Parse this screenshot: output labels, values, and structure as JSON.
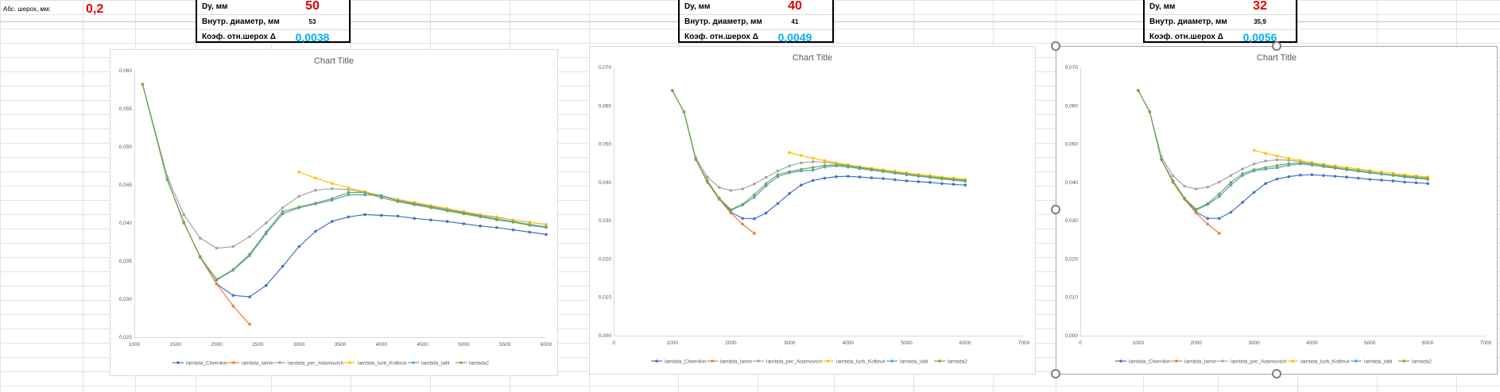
{
  "sheet": {
    "abs_roughness_label": "Абс. шерох, мм:",
    "abs_roughness_value": "0,2"
  },
  "info_boxes": [
    {
      "dy_label": "Dy, мм",
      "dy_value": "50",
      "inner_label": "Внутр. диаметр, мм",
      "inner_value": "53",
      "coef_label": "Коэф. отн.шерох Δ",
      "coef_value": "0,0038"
    },
    {
      "dy_label": "Dy, мм",
      "dy_value": "40",
      "inner_label": "Внутр. диаметр, мм",
      "inner_value": "41",
      "coef_label": "Коэф. отн.шерох Δ",
      "coef_value": "0,0049"
    },
    {
      "dy_label": "Dy, мм",
      "dy_value": "32",
      "inner_label": "Внутр. диаметр, мм",
      "inner_value": "35,9",
      "coef_label": "Коэф. отн.шерох Δ",
      "coef_value": "0,0056"
    }
  ],
  "colors": {
    "lambda_Chernikin": "#4472c4",
    "lambda_lamin": "#ed7d31",
    "lambda_per_Adamovich": "#a5a5a5",
    "lambda_turb_Kolbruk": "#ffc000",
    "lambda_tabl": "#5b9bd5",
    "lambda2": "#70ad47"
  },
  "chart_data": [
    {
      "type": "line",
      "title": "Chart Title",
      "xlim": [
        1000,
        6000
      ],
      "ylim": [
        0.025,
        0.06
      ],
      "xticks": [
        1000,
        1500,
        2000,
        2500,
        3000,
        3500,
        4000,
        4500,
        5000,
        5500,
        6000
      ],
      "xtick_labels": [
        "1000",
        "1500",
        "2000",
        "2500",
        "3000",
        "3500",
        "4000",
        "4500",
        "5000",
        "5500",
        "6000"
      ],
      "yticks": [
        0.025,
        0.03,
        0.035,
        0.04,
        0.045,
        0.05,
        0.055,
        0.06
      ],
      "ytick_labels": [
        "0,025",
        "0,030",
        "0,035",
        "0,040",
        "0,045",
        "0,050",
        "0,055",
        "0,060"
      ],
      "legend": "bottom",
      "grid": false,
      "series": [
        {
          "name": "lambda_Chernikin",
          "x": [
            1100,
            1400,
            1600,
            1800,
            2000,
            2200,
            2400,
            2600,
            2800,
            3000,
            3200,
            3400,
            3600,
            3800,
            4000,
            4200,
            4400,
            4600,
            4800,
            5000,
            5200,
            5400,
            5600,
            5800,
            6000
          ],
          "y": [
            0.0582,
            0.0457,
            0.0401,
            0.0355,
            0.032,
            0.0305,
            0.0303,
            0.0318,
            0.0343,
            0.0369,
            0.0389,
            0.0402,
            0.0408,
            0.0411,
            0.041,
            0.0409,
            0.0406,
            0.0404,
            0.0402,
            0.0399,
            0.0396,
            0.0394,
            0.0391,
            0.0388,
            0.0385
          ]
        },
        {
          "name": "lambda_lamin",
          "x": [
            1100,
            1400,
            1600,
            1800,
            2000,
            2200,
            2400
          ],
          "y": [
            0.0582,
            0.0457,
            0.04,
            0.0356,
            0.032,
            0.0291,
            0.0267
          ]
        },
        {
          "name": "lambda_per_Adamovich",
          "x": [
            1100,
            1400,
            1600,
            1800,
            2000,
            2200,
            2400,
            2600,
            2800,
            3000,
            3200,
            3400,
            3600,
            3800,
            4000,
            4200,
            4400,
            4600,
            4800,
            5000,
            5200,
            5400,
            5600,
            5800,
            6000
          ],
          "y": [
            0.0582,
            0.0461,
            0.0411,
            0.038,
            0.0367,
            0.0369,
            0.0382,
            0.04,
            0.042,
            0.0435,
            0.0443,
            0.0445,
            0.0444,
            0.044,
            0.0435,
            0.043,
            0.0426,
            0.0422,
            0.0418,
            0.0414,
            0.041,
            0.0407,
            0.0404,
            0.0401,
            0.0398
          ]
        },
        {
          "name": "lambda_turb_Kolbruk",
          "x": [
            3000,
            3200,
            3400,
            3600,
            3800,
            4000,
            4200,
            4400,
            4600,
            4800,
            5000,
            5200,
            5400,
            5600,
            5800,
            6000
          ],
          "y": [
            0.0467,
            0.0459,
            0.0452,
            0.0446,
            0.0441,
            0.0436,
            0.0431,
            0.0427,
            0.0423,
            0.0419,
            0.0415,
            0.0411,
            0.0408,
            0.0404,
            0.0401,
            0.0398
          ]
        },
        {
          "name": "lambda_tabl",
          "x": [
            1100,
            1400,
            1600,
            1800,
            2000,
            2200,
            2400,
            2600,
            2800,
            3000,
            3200,
            3400,
            3600,
            3800,
            4000,
            4200,
            4400,
            4600,
            4800,
            5000,
            5200,
            5400,
            5600,
            5800,
            6000
          ],
          "y": [
            0.0582,
            0.0457,
            0.0401,
            0.0355,
            0.0325,
            0.0338,
            0.0357,
            0.0386,
            0.0412,
            0.042,
            0.0425,
            0.043,
            0.0437,
            0.0437,
            0.0436,
            0.0429,
            0.0425,
            0.0421,
            0.0417,
            0.0413,
            0.0409,
            0.0405,
            0.0402,
            0.0398,
            0.0395
          ]
        },
        {
          "name": "lambda2",
          "x": [
            1100,
            1400,
            1600,
            1800,
            2000,
            2200,
            2400,
            2600,
            2800,
            3000,
            3200,
            3400,
            3600,
            3800,
            4000,
            4200,
            4400,
            4600,
            4800,
            5000,
            5200,
            5400,
            5600,
            5800,
            6000
          ],
          "y": [
            0.0582,
            0.0457,
            0.0401,
            0.0355,
            0.0326,
            0.0339,
            0.0359,
            0.0388,
            0.0415,
            0.0421,
            0.0426,
            0.0432,
            0.044,
            0.044,
            0.0433,
            0.0428,
            0.0424,
            0.042,
            0.0416,
            0.0412,
            0.0408,
            0.0404,
            0.0401,
            0.0397,
            0.0394
          ]
        }
      ]
    },
    {
      "type": "line",
      "title": "Chart Title",
      "xlim": [
        0,
        7000
      ],
      "ylim": [
        0,
        0.07
      ],
      "xticks": [
        0,
        1000,
        2000,
        3000,
        4000,
        5000,
        6000,
        7000
      ],
      "xtick_labels": [
        "0",
        "1000",
        "2000",
        "3000",
        "4000",
        "5000",
        "6000",
        "7000"
      ],
      "yticks": [
        0,
        0.01,
        0.02,
        0.03,
        0.04,
        0.05,
        0.06,
        0.07
      ],
      "ytick_labels": [
        "0,000",
        "0,010",
        "0,020",
        "0,030",
        "0,040",
        "0,050",
        "0,060",
        "0,070"
      ],
      "legend": "bottom",
      "grid": false,
      "series": [
        {
          "name": "lambda_Chernikin",
          "x": [
            1000,
            1200,
            1400,
            1600,
            1800,
            2000,
            2200,
            2400,
            2600,
            2800,
            3000,
            3200,
            3400,
            3600,
            3800,
            4000,
            4200,
            4400,
            4600,
            4800,
            5000,
            5200,
            5400,
            5600,
            5800,
            6000
          ],
          "y": [
            0.064,
            0.0584,
            0.046,
            0.0404,
            0.0359,
            0.0322,
            0.0306,
            0.0305,
            0.032,
            0.0345,
            0.0371,
            0.0393,
            0.0405,
            0.0411,
            0.0415,
            0.0416,
            0.0414,
            0.0412,
            0.041,
            0.0407,
            0.0404,
            0.0402,
            0.04,
            0.0397,
            0.0395,
            0.0393
          ]
        },
        {
          "name": "lambda_lamin",
          "x": [
            1000,
            1200,
            1400,
            1600,
            1800,
            2000,
            2200,
            2400
          ],
          "y": [
            0.064,
            0.0584,
            0.046,
            0.04,
            0.0356,
            0.032,
            0.0291,
            0.0267
          ]
        },
        {
          "name": "lambda_per_Adamovich",
          "x": [
            1000,
            1200,
            1400,
            1600,
            1800,
            2000,
            2200,
            2400,
            2600,
            2800,
            3000,
            3200,
            3400,
            3600,
            3800,
            4000,
            4200,
            4400,
            4600,
            4800,
            5000,
            5200,
            5400,
            5600,
            5800,
            6000
          ],
          "y": [
            0.064,
            0.0584,
            0.0465,
            0.0414,
            0.0387,
            0.0379,
            0.0383,
            0.0396,
            0.0413,
            0.043,
            0.0443,
            0.0451,
            0.0454,
            0.0453,
            0.0449,
            0.0444,
            0.0439,
            0.0434,
            0.043,
            0.0426,
            0.0422,
            0.0418,
            0.0415,
            0.0412,
            0.0409,
            0.0406
          ]
        },
        {
          "name": "lambda_turb_Kolbruk",
          "x": [
            3000,
            3200,
            3400,
            3600,
            3800,
            4000,
            4200,
            4400,
            4600,
            4800,
            5000,
            5200,
            5400,
            5600,
            5800,
            6000
          ],
          "y": [
            0.0478,
            0.047,
            0.0463,
            0.0457,
            0.0451,
            0.0446,
            0.0441,
            0.0437,
            0.0433,
            0.0429,
            0.0425,
            0.0421,
            0.0418,
            0.0414,
            0.0411,
            0.0408
          ]
        },
        {
          "name": "lambda_tabl",
          "x": [
            1000,
            1200,
            1400,
            1600,
            1800,
            2000,
            2200,
            2400,
            2600,
            2800,
            3000,
            3200,
            3400,
            3600,
            3800,
            4000,
            4200,
            4400,
            4600,
            4800,
            5000,
            5200,
            5400,
            5600,
            5800,
            6000
          ],
          "y": [
            0.064,
            0.0584,
            0.046,
            0.0404,
            0.0359,
            0.0327,
            0.0341,
            0.0361,
            0.0391,
            0.0415,
            0.0425,
            0.043,
            0.0432,
            0.044,
            0.0443,
            0.044,
            0.0436,
            0.0432,
            0.0428,
            0.0424,
            0.042,
            0.0416,
            0.0413,
            0.0409,
            0.0406,
            0.0403
          ]
        },
        {
          "name": "lambda2",
          "x": [
            1000,
            1200,
            1400,
            1600,
            1800,
            2000,
            2200,
            2400,
            2600,
            2800,
            3000,
            3200,
            3400,
            3600,
            3800,
            4000,
            4200,
            4400,
            4600,
            4800,
            5000,
            5200,
            5400,
            5600,
            5800,
            6000
          ],
          "y": [
            0.064,
            0.0584,
            0.046,
            0.0404,
            0.0359,
            0.0329,
            0.0343,
            0.0368,
            0.0397,
            0.042,
            0.0428,
            0.0434,
            0.0439,
            0.0444,
            0.0446,
            0.0443,
            0.0439,
            0.0434,
            0.043,
            0.0426,
            0.0422,
            0.0418,
            0.0414,
            0.0411,
            0.0408,
            0.0405
          ]
        }
      ]
    },
    {
      "type": "line",
      "title": "Chart Title",
      "xlim": [
        0,
        7000
      ],
      "ylim": [
        0,
        0.07
      ],
      "xticks": [
        0,
        1000,
        2000,
        3000,
        4000,
        5000,
        6000,
        7000
      ],
      "xtick_labels": [
        "0",
        "1000",
        "2000",
        "3000",
        "4000",
        "5000",
        "6000",
        "7000"
      ],
      "yticks": [
        0,
        0.01,
        0.02,
        0.03,
        0.04,
        0.05,
        0.06,
        0.07
      ],
      "ytick_labels": [
        "0,000",
        "0,010",
        "0,020",
        "0,030",
        "0,040",
        "0,050",
        "0,060",
        "0,070"
      ],
      "legend": "bottom",
      "grid": false,
      "series": [
        {
          "name": "lambda_Chernikin",
          "x": [
            1000,
            1200,
            1400,
            1600,
            1800,
            2000,
            2200,
            2400,
            2600,
            2800,
            3000,
            3200,
            3400,
            3600,
            3800,
            4000,
            4200,
            4400,
            4600,
            4800,
            5000,
            5200,
            5400,
            5600,
            5800,
            6000
          ],
          "y": [
            0.064,
            0.0584,
            0.046,
            0.0404,
            0.0359,
            0.0322,
            0.0306,
            0.0306,
            0.0322,
            0.0348,
            0.0374,
            0.0397,
            0.0409,
            0.0415,
            0.0419,
            0.042,
            0.0418,
            0.0416,
            0.0414,
            0.0411,
            0.0408,
            0.0406,
            0.0404,
            0.0401,
            0.0399,
            0.0397
          ]
        },
        {
          "name": "lambda_lamin",
          "x": [
            1000,
            1200,
            1400,
            1600,
            1800,
            2000,
            2200,
            2400
          ],
          "y": [
            0.064,
            0.0584,
            0.046,
            0.04,
            0.0356,
            0.032,
            0.0291,
            0.0267
          ]
        },
        {
          "name": "lambda_per_Adamovich",
          "x": [
            1000,
            1200,
            1400,
            1600,
            1800,
            2000,
            2200,
            2400,
            2600,
            2800,
            3000,
            3200,
            3400,
            3600,
            3800,
            4000,
            4200,
            4400,
            4600,
            4800,
            5000,
            5200,
            5400,
            5600,
            5800,
            6000
          ],
          "y": [
            0.064,
            0.0584,
            0.0467,
            0.0417,
            0.039,
            0.0383,
            0.0388,
            0.0401,
            0.0418,
            0.0435,
            0.0448,
            0.0456,
            0.0459,
            0.0458,
            0.0454,
            0.0449,
            0.0444,
            0.0439,
            0.0435,
            0.0431,
            0.0427,
            0.0423,
            0.042,
            0.0417,
            0.0414,
            0.0411
          ]
        },
        {
          "name": "lambda_turb_Kolbruk",
          "x": [
            3000,
            3200,
            3400,
            3600,
            3800,
            4000,
            4200,
            4400,
            4600,
            4800,
            5000,
            5200,
            5400,
            5600,
            5800,
            6000
          ],
          "y": [
            0.0484,
            0.0476,
            0.0469,
            0.0463,
            0.0457,
            0.0452,
            0.0447,
            0.0443,
            0.0439,
            0.0435,
            0.0431,
            0.0427,
            0.0424,
            0.042,
            0.0417,
            0.0414
          ]
        },
        {
          "name": "lambda_tabl",
          "x": [
            1000,
            1200,
            1400,
            1600,
            1800,
            2000,
            2200,
            2400,
            2600,
            2800,
            3000,
            3200,
            3400,
            3600,
            3800,
            4000,
            4200,
            4400,
            4600,
            4800,
            5000,
            5200,
            5400,
            5600,
            5800,
            6000
          ],
          "y": [
            0.064,
            0.0584,
            0.046,
            0.0404,
            0.0359,
            0.0328,
            0.0342,
            0.0363,
            0.0393,
            0.0418,
            0.043,
            0.0435,
            0.0438,
            0.0445,
            0.0448,
            0.0445,
            0.0441,
            0.0437,
            0.0433,
            0.0429,
            0.0425,
            0.0421,
            0.0418,
            0.0414,
            0.0411,
            0.0408
          ]
        },
        {
          "name": "lambda2",
          "x": [
            1000,
            1200,
            1400,
            1600,
            1800,
            2000,
            2200,
            2400,
            2600,
            2800,
            3000,
            3200,
            3400,
            3600,
            3800,
            4000,
            4200,
            4400,
            4600,
            4800,
            5000,
            5200,
            5400,
            5600,
            5800,
            6000
          ],
          "y": [
            0.064,
            0.0584,
            0.046,
            0.0404,
            0.0359,
            0.033,
            0.0345,
            0.037,
            0.04,
            0.0423,
            0.0433,
            0.0439,
            0.0444,
            0.0449,
            0.0451,
            0.0448,
            0.0444,
            0.0439,
            0.0435,
            0.0431,
            0.0427,
            0.0423,
            0.0419,
            0.0416,
            0.0413,
            0.041
          ]
        }
      ]
    }
  ]
}
